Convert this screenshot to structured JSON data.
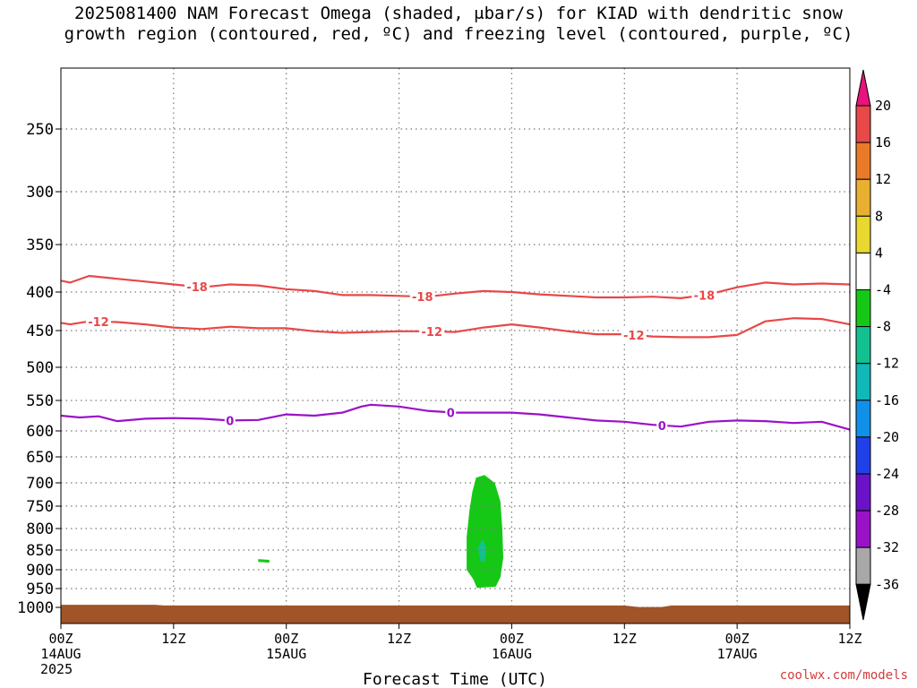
{
  "title_line1": "2025081400 NAM Forecast Omega (shaded, μbar/s) for KIAD with dendritic snow",
  "title_line2": "growth region (contoured, red, ºC) and freezing level (contoured, purple, ºC)",
  "credit": "coolwx.com/models",
  "chart_data": {
    "type": "contour",
    "xlabel": "Forecast Time (UTC)",
    "ylabel": "",
    "x_range_hours": [
      0,
      84
    ],
    "y_axis": "pressure (hPa), inverted",
    "y_ticks": [
      250,
      300,
      350,
      400,
      450,
      500,
      550,
      600,
      650,
      700,
      750,
      800,
      850,
      900,
      950,
      1000
    ],
    "x_ticks": [
      {
        "hour": 0,
        "label": "00Z",
        "date": "14AUG",
        "year": "2025"
      },
      {
        "hour": 12,
        "label": "12Z",
        "date": "",
        "year": ""
      },
      {
        "hour": 24,
        "label": "00Z",
        "date": "15AUG",
        "year": ""
      },
      {
        "hour": 36,
        "label": "12Z",
        "date": "",
        "year": ""
      },
      {
        "hour": 48,
        "label": "00Z",
        "date": "16AUG",
        "year": ""
      },
      {
        "hour": 60,
        "label": "12Z",
        "date": "",
        "year": ""
      },
      {
        "hour": 72,
        "label": "00Z",
        "date": "17AUG",
        "year": ""
      },
      {
        "hour": 84,
        "label": "12Z",
        "date": "",
        "year": ""
      }
    ],
    "grid": true,
    "contours": [
      {
        "name": "-18",
        "color": "#e84848",
        "hours": [
          0,
          1,
          3,
          6,
          9,
          12,
          15,
          18,
          21,
          24,
          27,
          30,
          33,
          36,
          39,
          42,
          45,
          48,
          51,
          54,
          57,
          60,
          63,
          66,
          69,
          72,
          75,
          78,
          81,
          84
        ],
        "pressure": [
          388,
          390,
          383,
          386,
          389,
          392,
          395,
          392,
          393,
          397,
          399,
          404,
          404,
          405,
          406,
          402,
          399,
          400,
          403,
          405,
          407,
          407,
          406,
          408,
          403,
          395,
          390,
          392,
          391,
          392
        ],
        "labels": [
          {
            "hour": 14.5,
            "text": "-18"
          },
          {
            "hour": 38.5,
            "text": "-18"
          },
          {
            "hour": 68.5,
            "text": "-18"
          }
        ]
      },
      {
        "name": "-12",
        "color": "#e84848",
        "hours": [
          0,
          1,
          3,
          6,
          9,
          12,
          15,
          18,
          21,
          24,
          27,
          30,
          33,
          36,
          39,
          42,
          45,
          48,
          51,
          54,
          57,
          60,
          63,
          66,
          69,
          72,
          75,
          78,
          81,
          84
        ],
        "pressure": [
          440,
          442,
          438,
          439,
          442,
          446,
          448,
          445,
          447,
          447,
          451,
          453,
          452,
          451,
          451,
          452,
          446,
          442,
          446,
          451,
          455,
          455,
          458,
          459,
          459,
          456,
          438,
          434,
          435,
          442
        ],
        "labels": [
          {
            "hour": 4,
            "text": "-12"
          },
          {
            "hour": 39.5,
            "text": "-12"
          },
          {
            "hour": 61,
            "text": "-12"
          }
        ]
      },
      {
        "name": "0",
        "color": "#9a12c8",
        "hours": [
          0,
          2,
          4,
          6,
          9,
          12,
          15,
          18,
          21,
          24,
          27,
          30,
          32,
          33,
          36,
          39,
          42,
          45,
          48,
          51,
          54,
          57,
          60,
          63,
          66,
          69,
          72,
          75,
          78,
          81,
          84
        ],
        "pressure": [
          575,
          578,
          576,
          584,
          580,
          579,
          580,
          583,
          582,
          573,
          575,
          570,
          560,
          557,
          560,
          567,
          570,
          570,
          570,
          573,
          578,
          583,
          585,
          590,
          593,
          585,
          583,
          584,
          587,
          585,
          598
        ],
        "labels": [
          {
            "hour": 18,
            "text": "0"
          },
          {
            "hour": 41.5,
            "text": "0"
          },
          {
            "hour": 64,
            "text": "0"
          }
        ]
      }
    ],
    "shaded_regions": [
      {
        "name": "omega -4 to -8",
        "color": "#16c816",
        "outline": [
          [
            44.2,
            690
          ],
          [
            45.1,
            685
          ],
          [
            46.2,
            700
          ],
          [
            46.8,
            740
          ],
          [
            47.0,
            800
          ],
          [
            47.1,
            870
          ],
          [
            46.8,
            920
          ],
          [
            46.3,
            945
          ],
          [
            44.3,
            948
          ],
          [
            43.9,
            925
          ],
          [
            43.2,
            900
          ],
          [
            43.2,
            820
          ],
          [
            43.5,
            760
          ],
          [
            43.8,
            720
          ]
        ]
      },
      {
        "name": "omega -8 to -12",
        "color": "#12c090",
        "outline": [
          [
            44.9,
            825
          ],
          [
            45.3,
            845
          ],
          [
            45.1,
            880
          ],
          [
            44.7,
            880
          ],
          [
            44.4,
            845
          ]
        ]
      },
      {
        "name": "omega -4 to -8",
        "color": "#16c816",
        "outline": [
          [
            21,
            873
          ],
          [
            22.2,
            875
          ],
          [
            22.2,
            882
          ],
          [
            21,
            880
          ]
        ]
      }
    ],
    "surface": {
      "color": "#a05428",
      "hours": [
        0,
        10,
        11,
        60,
        61.5,
        64,
        65,
        84
      ],
      "pressure": [
        993,
        993,
        995,
        995,
        999,
        999,
        995,
        995
      ]
    },
    "colorbar": {
      "ticks": [
        20,
        16,
        12,
        8,
        4,
        -4,
        -8,
        -12,
        -16,
        -20,
        -24,
        -28,
        -32,
        -36
      ],
      "segments": [
        "#e8137c",
        "#e84848",
        "#e87a28",
        "#e8b030",
        "#e8d830",
        "#ffffff",
        "#16c816",
        "#12c090",
        "#10b8b8",
        "#1090e8",
        "#2040e8",
        "#6a12c8",
        "#9a12c8",
        "#a8a8a8",
        "#000000"
      ]
    }
  }
}
